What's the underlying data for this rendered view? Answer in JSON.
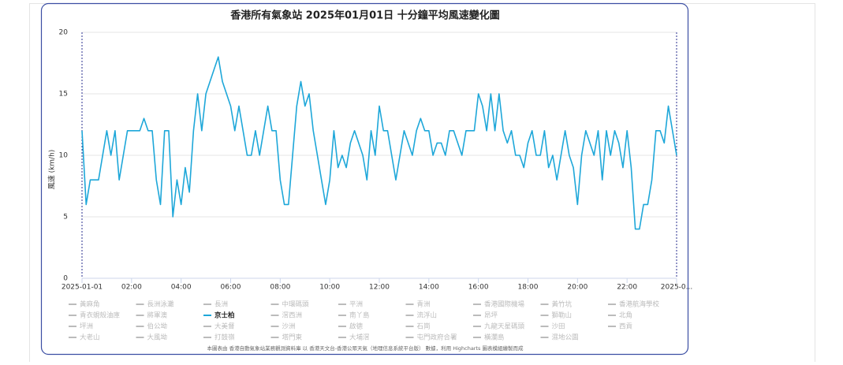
{
  "chart_data": {
    "type": "line",
    "title": "香港所有氣象站 2025年01月01日 十分鐘平均風速變化圖",
    "y_label": "風速 (km/h)",
    "credit": "本圖表由 香港自動氣象站業務觀測資料庫 以 香港天文台-香港公眾天氣（地理信息系統平台版） 數據，利用 Highcharts 圖表模組繪製而成",
    "ylim": [
      0,
      20
    ],
    "yticks": [
      0,
      5,
      10,
      15,
      20
    ],
    "xlim": [
      0,
      1440
    ],
    "xticks": [
      {
        "value": 0,
        "label": "2025-01-01"
      },
      {
        "value": 120,
        "label": "02:00"
      },
      {
        "value": 240,
        "label": "04:00"
      },
      {
        "value": 360,
        "label": "06:00"
      },
      {
        "value": 480,
        "label": "08:00"
      },
      {
        "value": 600,
        "label": "10:00"
      },
      {
        "value": 720,
        "label": "12:00"
      },
      {
        "value": 840,
        "label": "14:00"
      },
      {
        "value": 960,
        "label": "16:00"
      },
      {
        "value": 1080,
        "label": "18:00"
      },
      {
        "value": 1200,
        "label": "20:00"
      },
      {
        "value": 1320,
        "label": "22:00"
      },
      {
        "value": 1440,
        "label": "2025-0..."
      }
    ],
    "grid": true,
    "hidden_color": "#bbbbbb",
    "x": [
      0,
      10,
      20,
      30,
      40,
      50,
      60,
      70,
      80,
      90,
      100,
      110,
      120,
      130,
      140,
      150,
      160,
      170,
      180,
      190,
      200,
      210,
      220,
      230,
      240,
      250,
      260,
      270,
      280,
      290,
      300,
      310,
      320,
      330,
      340,
      350,
      360,
      370,
      380,
      390,
      400,
      410,
      420,
      430,
      440,
      450,
      460,
      470,
      480,
      490,
      500,
      510,
      520,
      530,
      540,
      550,
      560,
      570,
      580,
      590,
      600,
      610,
      620,
      630,
      640,
      650,
      660,
      670,
      680,
      690,
      700,
      710,
      720,
      730,
      740,
      750,
      760,
      770,
      780,
      790,
      800,
      810,
      820,
      830,
      840,
      850,
      860,
      870,
      880,
      890,
      900,
      910,
      920,
      930,
      940,
      950,
      960,
      970,
      980,
      990,
      1000,
      1010,
      1020,
      1030,
      1040,
      1050,
      1060,
      1070,
      1080,
      1090,
      1100,
      1110,
      1120,
      1130,
      1140,
      1150,
      1160,
      1170,
      1180,
      1190,
      1200,
      1210,
      1220,
      1230,
      1240,
      1250,
      1260,
      1270,
      1280,
      1290,
      1300,
      1310,
      1320,
      1330,
      1340,
      1350,
      1360,
      1370,
      1380,
      1390,
      1400,
      1410,
      1420,
      1430,
      1440
    ],
    "series": [
      {
        "name": "黃麻角",
        "visible": false
      },
      {
        "name": "長洲泳灘",
        "visible": false
      },
      {
        "name": "長洲",
        "visible": false
      },
      {
        "name": "中環碼頭",
        "visible": false
      },
      {
        "name": "平洲",
        "visible": false
      },
      {
        "name": "青洲",
        "visible": false
      },
      {
        "name": "香港國際機場",
        "visible": false
      },
      {
        "name": "黃竹坑",
        "visible": false
      },
      {
        "name": "香港航海學校",
        "visible": false
      },
      {
        "name": "青衣蜆殼油庫",
        "visible": false
      },
      {
        "name": "將軍澳",
        "visible": false
      },
      {
        "name": "京士柏",
        "visible": true,
        "color": "#1ea7d9",
        "values": [
          12,
          6,
          8,
          8,
          8,
          10,
          12,
          10,
          12,
          8,
          10,
          12,
          12,
          12,
          12,
          13,
          12,
          12,
          8,
          6,
          12,
          12,
          5,
          8,
          6,
          9,
          7,
          12,
          15,
          12,
          15,
          16,
          17,
          18,
          16,
          15,
          14,
          12,
          14,
          12,
          10,
          10,
          12,
          10,
          12,
          14,
          12,
          12,
          8,
          6,
          6,
          10,
          14,
          16,
          14,
          15,
          12,
          10,
          8,
          6,
          8,
          12,
          9,
          10,
          9,
          11,
          12,
          11,
          10,
          8,
          12,
          10,
          14,
          12,
          12,
          10,
          8,
          10,
          12,
          11,
          10,
          12,
          13,
          12,
          12,
          10,
          11,
          11,
          10,
          12,
          12,
          11,
          10,
          12,
          12,
          12,
          15,
          14,
          12,
          15,
          12,
          15,
          12,
          11,
          12,
          10,
          10,
          9,
          11,
          12,
          10,
          10,
          12,
          9,
          10,
          8,
          10,
          12,
          10,
          9,
          6,
          10,
          12,
          11,
          10,
          12,
          8,
          12,
          10,
          12,
          11,
          9,
          12,
          9,
          4,
          4,
          6,
          6,
          8,
          12,
          12,
          11,
          14,
          12,
          10
        ]
      },
      {
        "name": "滘西洲",
        "visible": false
      },
      {
        "name": "南丫島",
        "visible": false
      },
      {
        "name": "流浮山",
        "visible": false
      },
      {
        "name": "昂坪",
        "visible": false
      },
      {
        "name": "獅勒山",
        "visible": false
      },
      {
        "name": "北角",
        "visible": false
      },
      {
        "name": "坪洲",
        "visible": false
      },
      {
        "name": "伯公坳",
        "visible": false
      },
      {
        "name": "大美督",
        "visible": false
      },
      {
        "name": "沙洲",
        "visible": false
      },
      {
        "name": "啟德",
        "visible": false
      },
      {
        "name": "石崗",
        "visible": false
      },
      {
        "name": "九龍天星碼頭",
        "visible": false
      },
      {
        "name": "沙田",
        "visible": false
      },
      {
        "name": "西貢",
        "visible": false
      },
      {
        "name": "大老山",
        "visible": false
      },
      {
        "name": "大風坳",
        "visible": false
      },
      {
        "name": "打鼓嶺",
        "visible": false
      },
      {
        "name": "塔門東",
        "visible": false
      },
      {
        "name": "大埔滘",
        "visible": false
      },
      {
        "name": "屯門政府合署",
        "visible": false
      },
      {
        "name": "橫瀾島",
        "visible": false
      },
      {
        "name": "濕地公園",
        "visible": false
      }
    ]
  }
}
